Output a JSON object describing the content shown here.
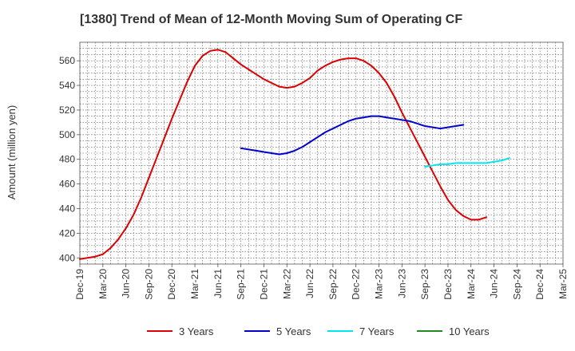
{
  "chart_data": {
    "type": "line",
    "title": "[1380]  Trend of Mean of 12-Month Moving Sum of Operating CF",
    "xlabel": "",
    "ylabel": "Amount (million yen)",
    "ylim": [
      395,
      575
    ],
    "y_ticks": [
      400,
      420,
      440,
      460,
      480,
      500,
      520,
      540,
      560
    ],
    "x_ticks": [
      "Dec-19",
      "Mar-20",
      "Jun-20",
      "Sep-20",
      "Dec-20",
      "Mar-21",
      "Jun-21",
      "Sep-21",
      "Dec-21",
      "Mar-22",
      "Jun-22",
      "Sep-22",
      "Dec-22",
      "Mar-23",
      "Jun-23",
      "Sep-23",
      "Dec-23",
      "Mar-24",
      "Jun-24",
      "Sep-24",
      "Dec-24",
      "Mar-25"
    ],
    "grid": true,
    "legend_position": "bottom",
    "series": [
      {
        "name": "3 Years",
        "color": "#dd0000",
        "start_index": 0,
        "values": [
          399,
          400,
          401,
          403,
          408,
          415,
          424,
          435,
          449,
          465,
          481,
          497,
          513,
          528,
          543,
          556,
          564,
          568,
          569,
          567,
          562,
          557,
          553,
          549,
          545,
          542,
          539,
          538,
          539,
          542,
          546,
          552,
          556,
          559,
          561,
          562,
          562,
          560,
          556,
          550,
          542,
          531,
          518,
          506,
          494,
          482,
          470,
          458,
          447,
          439,
          434,
          431,
          431,
          433
        ]
      },
      {
        "name": "5 Years",
        "color": "#0000cc",
        "start_index": 21,
        "values": [
          489,
          488,
          487,
          486,
          485,
          484,
          485,
          487,
          490,
          494,
          498,
          502,
          505,
          508,
          511,
          513,
          514,
          515,
          515,
          514,
          513,
          512,
          511,
          509,
          507,
          506,
          505,
          506,
          507,
          508
        ]
      },
      {
        "name": "7 Years",
        "color": "#00e5ee",
        "start_index": 45,
        "values": [
          474,
          475,
          476,
          476,
          477,
          477,
          477,
          477,
          477,
          478,
          479,
          481
        ]
      },
      {
        "name": "10 Years",
        "color": "#228b22",
        "start_index": 0,
        "values": []
      }
    ]
  }
}
